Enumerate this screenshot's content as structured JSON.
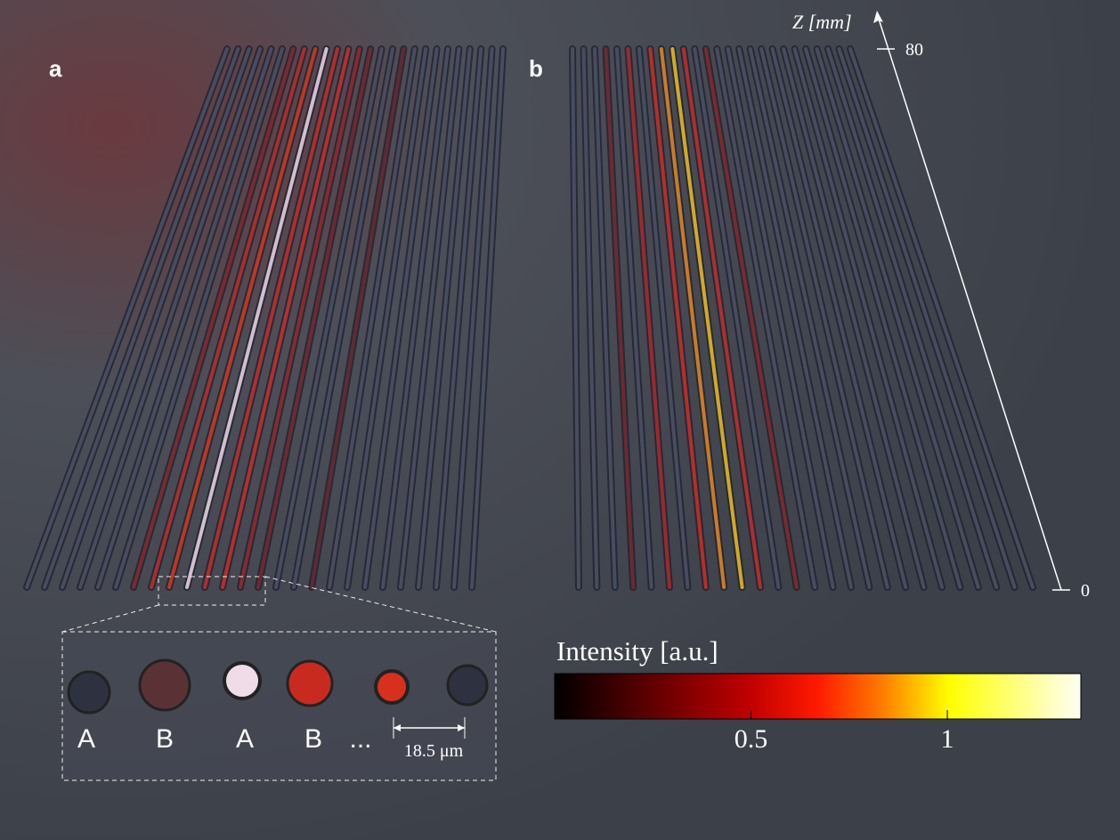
{
  "panels": {
    "a": {
      "label": "a"
    },
    "b": {
      "label": "b"
    }
  },
  "z_axis": {
    "label": "Z [mm]",
    "lim": [
      0,
      80
    ],
    "ticks": [
      0,
      80
    ]
  },
  "inset": {
    "labels": [
      "A",
      "B",
      "A",
      "B",
      "..."
    ],
    "scale_label": "18.5 μm"
  },
  "colorbar": {
    "label": "Intensity [a.u.]",
    "range": [
      0,
      1.34
    ],
    "ticks": [
      0.5,
      1
    ]
  }
}
